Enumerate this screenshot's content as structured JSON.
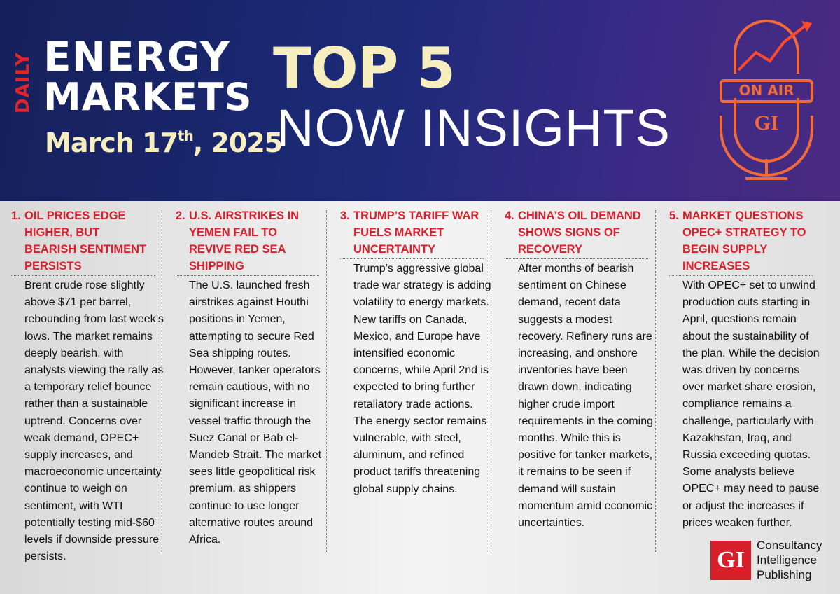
{
  "header": {
    "daily": "DAILY",
    "energy": "ENERGY",
    "markets": "MARKETS",
    "date": {
      "day": "March 17",
      "suffix": "th",
      "year": ", 2025"
    },
    "top": "TOP 5",
    "now_insights": "NOW INSIGHTS",
    "on_air": "ON AIR",
    "mic_logo": "GI"
  },
  "columns": [
    {
      "number": "1.",
      "title": "OIL PRICES EDGE HIGHER, BUT BEARISH SENTIMENT PERSISTS",
      "body": "Brent crude rose slightly above $71 per barrel, rebounding from last week’s lows. The market remains deeply bearish, with analysts viewing the rally as a temporary relief bounce rather than a sustainable uptrend. Concerns over weak demand, OPEC+ supply increases, and macroeconomic uncertainty continue to weigh on sentiment, with WTI potentially testing mid-$60 levels if downside pressure persists."
    },
    {
      "number": "2.",
      "title": "U.S. AIRSTRIKES IN YEMEN FAIL TO REVIVE RED SEA SHIPPING",
      "body": "The U.S. launched fresh airstrikes against Houthi positions in Yemen, attempting to secure Red Sea shipping routes. However, tanker operators remain cautious, with no significant increase in vessel traffic through the Suez Canal or Bab el-Mandeb Strait. The market sees little geopolitical risk premium, as shippers continue to use longer alternative routes around Africa."
    },
    {
      "number": "3.",
      "title": "TRUMP’S TARIFF WAR FUELS MARKET UNCERTAINTY",
      "body": "Trump’s aggressive global trade war strategy is adding volatility to energy markets. New tariffs on Canada, Mexico, and Europe have intensified economic concerns, while April 2nd is expected to bring further retaliatory trade actions. The energy sector remains vulnerable, with steel, aluminum, and refined product tariffs threatening global supply chains."
    },
    {
      "number": "4.",
      "title": "CHINA’S OIL DEMAND SHOWS SIGNS OF RECOVERY",
      "body": "After months of bearish sentiment on Chinese demand, recent data suggests a modest recovery. Refinery runs are increasing, and onshore inventories have been drawn down, indicating higher crude import requirements in the coming months. While this is positive for tanker markets, it remains to be seen if demand will sustain momentum amid economic uncertainties."
    },
    {
      "number": "5.",
      "title": "MARKET QUESTIONS OPEC+ STRATEGY TO BEGIN SUPPLY INCREASES",
      "body": "With OPEC+ set to unwind production cuts starting in April, questions remain about the sustainability of the plan. While the decision was driven by concerns over market share erosion, compliance remains a challenge, particularly with Kazakhstan, Iraq, and Russia exceeding quotas. Some analysts believe OPEC+ may need to pause or adjust the increases if prices weaken further."
    }
  ],
  "footer": {
    "logo": "GI",
    "lines": [
      "Consultancy",
      "Intelligence",
      "Publishing"
    ]
  }
}
